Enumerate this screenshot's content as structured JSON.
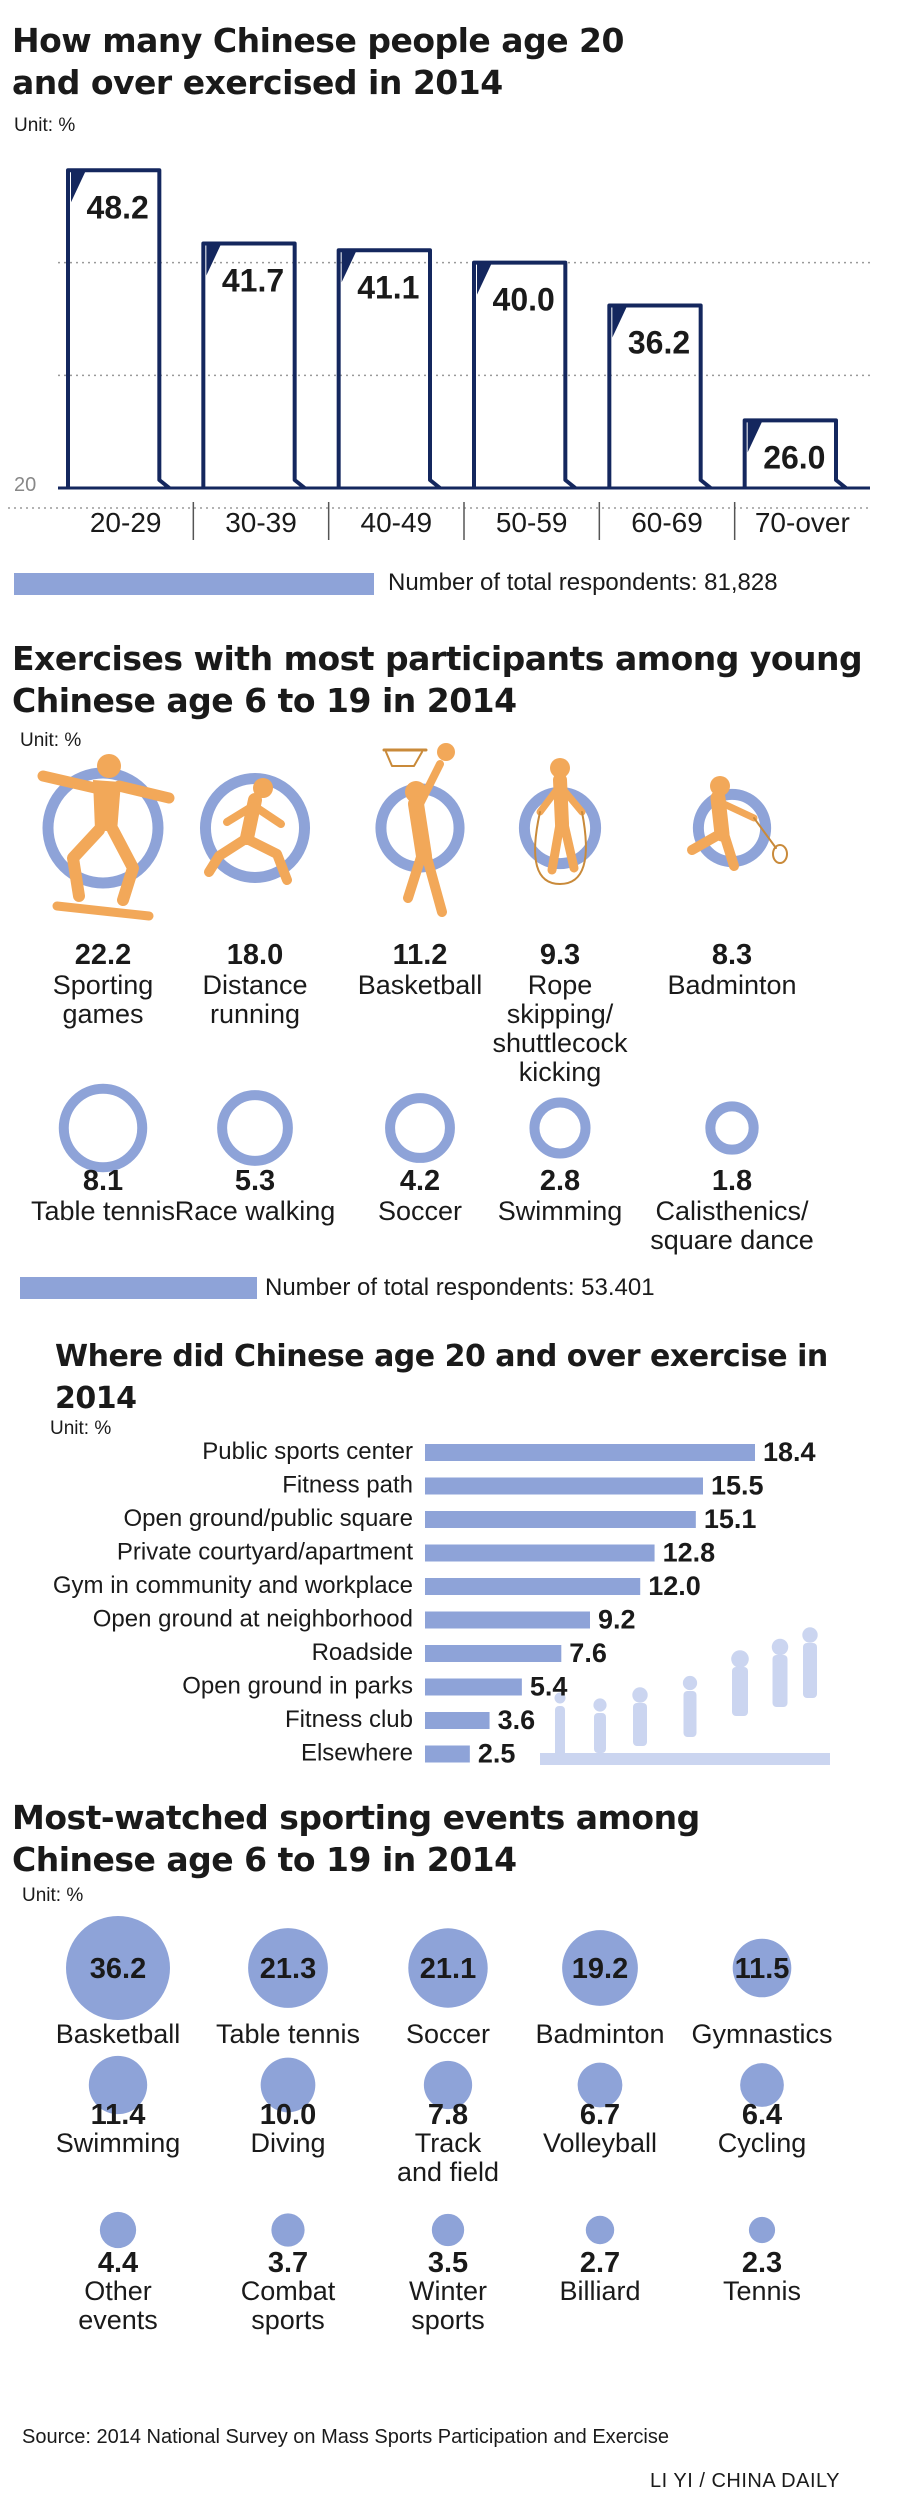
{
  "colors": {
    "navy": "#14275e",
    "blue": "#8ea3d8",
    "orange": "#f2a859",
    "text": "#1a1a1a"
  },
  "source": "Source: 2014 National Survey on Mass Sports Participation and Exercise",
  "credit": "LI YI / CHINA DAILY",
  "chart_data": [
    {
      "type": "bar",
      "title": "How many Chinese people age 20 and over exercised in 2014",
      "title_lines": [
        "How many Chinese people age 20",
        "and over exercised in 2014"
      ],
      "unit": "Unit: %",
      "categories": [
        "20-29",
        "30-39",
        "40-49",
        "50-59",
        "60-69",
        "70-over"
      ],
      "values": [
        48.2,
        41.7,
        41.1,
        40.0,
        36.2,
        26.0
      ],
      "value_labels": [
        "48.2",
        "41.7",
        "41.1",
        "40.0",
        "36.2",
        "26.0"
      ],
      "ylim": [
        20,
        50
      ],
      "ytick_label": "20",
      "grid": true,
      "respondents": {
        "label": "Number of total respondents: 81,828",
        "fraction": 0.48
      }
    },
    {
      "type": "bar",
      "title": "Exercises with most participants among young Chinese age 6 to 19 in 2014",
      "title_lines": [
        "Exercises with most participants among young",
        "Chinese age 6 to 19 in 2014"
      ],
      "unit": "Unit: %",
      "items": [
        {
          "value": 22.2,
          "value_label": "22.2",
          "label_lines": [
            "Sporting",
            "games"
          ],
          "icon": "skateboarder-icon"
        },
        {
          "value": 18.0,
          "value_label": "18.0",
          "label_lines": [
            "Distance",
            "running"
          ],
          "icon": "runner-icon"
        },
        {
          "value": 11.2,
          "value_label": "11.2",
          "label_lines": [
            "Basketball"
          ],
          "icon": "basketball-player-icon"
        },
        {
          "value": 9.3,
          "value_label": "9.3",
          "label_lines": [
            "Rope",
            "skipping/",
            "shuttlecock",
            "kicking"
          ],
          "icon": "rope-skipper-icon"
        },
        {
          "value": 8.3,
          "value_label": "8.3",
          "label_lines": [
            "Badminton"
          ],
          "icon": "badminton-player-icon"
        },
        {
          "value": 8.1,
          "value_label": "8.1",
          "label_lines": [
            "Table tennis"
          ]
        },
        {
          "value": 5.3,
          "value_label": "5.3",
          "label_lines": [
            "Race walking"
          ]
        },
        {
          "value": 4.2,
          "value_label": "4.2",
          "label_lines": [
            "Soccer"
          ]
        },
        {
          "value": 2.8,
          "value_label": "2.8",
          "label_lines": [
            "Swimming"
          ]
        },
        {
          "value": 1.8,
          "value_label": "1.8",
          "label_lines": [
            "Calisthenics/",
            "square dance"
          ]
        }
      ],
      "respondents": {
        "label": "Number of total respondents: 53.401",
        "fraction": 0.3
      }
    },
    {
      "type": "bar",
      "orientation": "horizontal",
      "title": "Where did Chinese age 20 and over exercise in 2014",
      "unit": "Unit: %",
      "categories": [
        "Public sports center",
        "Fitness path",
        "Open ground/public square",
        "Private courtyard/apartment",
        "Gym in community and workplace",
        "Open ground at neighborhood",
        "Roadside",
        "Open ground in parks",
        "Fitness club",
        "Elsewhere"
      ],
      "values": [
        18.4,
        15.5,
        15.1,
        12.8,
        12.0,
        9.2,
        7.6,
        5.4,
        3.6,
        2.5
      ],
      "value_labels": [
        "18.4",
        "15.5",
        "15.1",
        "12.8",
        "12.0",
        "9.2",
        "7.6",
        "5.4",
        "3.6",
        "2.5"
      ],
      "decoration_icon": "fitness-people-icon"
    },
    {
      "type": "scatter",
      "title": "Most-watched sporting events among Chinese age 6 to 19 in 2014",
      "title_lines": [
        "Most-watched sporting events among",
        "Chinese age 6 to 19 in 2014"
      ],
      "unit": "Unit: %",
      "items": [
        {
          "value": 36.2,
          "value_label": "36.2",
          "label_lines": [
            "Basketball"
          ],
          "inside": true
        },
        {
          "value": 21.3,
          "value_label": "21.3",
          "label_lines": [
            "Table tennis"
          ],
          "inside": true
        },
        {
          "value": 21.1,
          "value_label": "21.1",
          "label_lines": [
            "Soccer"
          ],
          "inside": true
        },
        {
          "value": 19.2,
          "value_label": "19.2",
          "label_lines": [
            "Badminton"
          ],
          "inside": true
        },
        {
          "value": 11.5,
          "value_label": "11.5",
          "label_lines": [
            "Gymnastics"
          ],
          "inside": true
        },
        {
          "value": 11.4,
          "value_label": "11.4",
          "label_lines": [
            "Swimming"
          ]
        },
        {
          "value": 10.0,
          "value_label": "10.0",
          "label_lines": [
            "Diving"
          ]
        },
        {
          "value": 7.8,
          "value_label": "7.8",
          "label_lines": [
            "Track",
            "and field"
          ]
        },
        {
          "value": 6.7,
          "value_label": "6.7",
          "label_lines": [
            "Volleyball"
          ]
        },
        {
          "value": 6.4,
          "value_label": "6.4",
          "label_lines": [
            "Cycling"
          ]
        },
        {
          "value": 4.4,
          "value_label": "4.4",
          "label_lines": [
            "Other",
            "events"
          ]
        },
        {
          "value": 3.7,
          "value_label": "3.7",
          "label_lines": [
            "Combat",
            "sports"
          ]
        },
        {
          "value": 3.5,
          "value_label": "3.5",
          "label_lines": [
            "Winter",
            "sports"
          ]
        },
        {
          "value": 2.7,
          "value_label": "2.7",
          "label_lines": [
            "Billiard"
          ]
        },
        {
          "value": 2.3,
          "value_label": "2.3",
          "label_lines": [
            "Tennis"
          ]
        }
      ]
    }
  ]
}
